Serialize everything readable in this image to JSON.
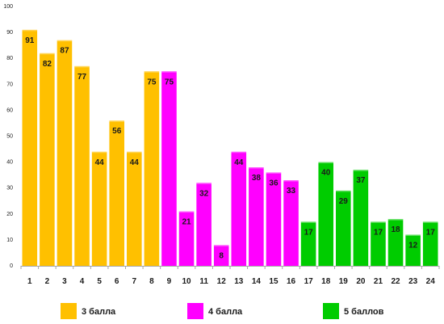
{
  "chart_data": {
    "type": "bar",
    "categories": [
      "1",
      "2",
      "3",
      "4",
      "5",
      "6",
      "7",
      "8",
      "9",
      "10",
      "11",
      "12",
      "13",
      "14",
      "15",
      "16",
      "17",
      "18",
      "19",
      "20",
      "21",
      "22",
      "23",
      "24"
    ],
    "values": [
      91,
      82,
      87,
      77,
      44,
      56,
      44,
      75,
      75,
      21,
      32,
      8,
      44,
      38,
      36,
      33,
      17,
      40,
      29,
      37,
      17,
      18,
      12,
      17
    ],
    "groups": [
      1,
      1,
      1,
      1,
      1,
      1,
      1,
      1,
      2,
      2,
      2,
      2,
      2,
      2,
      2,
      2,
      3,
      3,
      3,
      3,
      3,
      3,
      3,
      3
    ],
    "value_labels": [
      "91",
      "82",
      "87",
      "77",
      "44",
      "56",
      "44",
      "75",
      "75",
      "21",
      "32",
      "8",
      "44",
      "38",
      "36",
      "33",
      "17",
      "40",
      "29",
      "37",
      "17",
      "18",
      "12",
      "17"
    ],
    "ylim": [
      0,
      100
    ],
    "yticks": [
      0,
      10,
      20,
      30,
      40,
      50,
      60,
      70,
      80,
      90,
      100
    ],
    "ytick_labels": [
      "0",
      "10",
      "20",
      "30",
      "40",
      "50",
      "60",
      "70",
      "80",
      "90",
      "100"
    ],
    "title": "",
    "xlabel": "",
    "ylabel": "",
    "grid": false,
    "legend_position": "bottom",
    "series": [
      {
        "name": "3 балла",
        "color": "#FFC000",
        "group": 1
      },
      {
        "name": "4 балла",
        "color": "#FF00FF",
        "group": 2
      },
      {
        "name": "5 баллов",
        "color": "#00CC00",
        "group": 3
      }
    ]
  }
}
